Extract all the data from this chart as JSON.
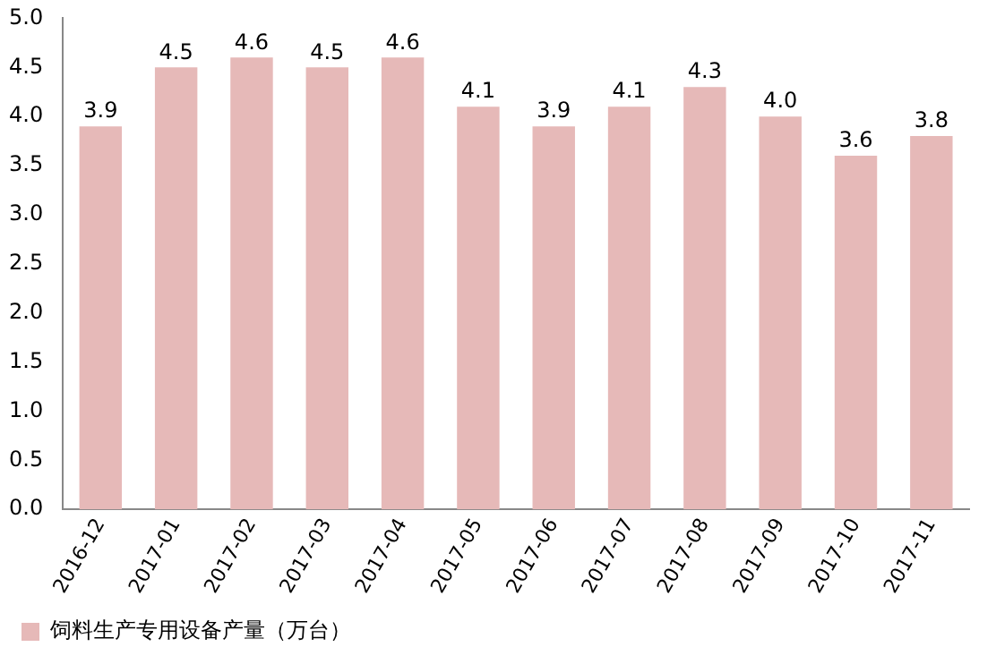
{
  "chart_data": {
    "type": "bar",
    "categories": [
      "2016-12",
      "2017-01",
      "2017-02",
      "2017-03",
      "2017-04",
      "2017-05",
      "2017-06",
      "2017-07",
      "2017-08",
      "2017-09",
      "2017-10",
      "2017-11"
    ],
    "series": [
      {
        "name": "饲料生产专用设备产量（万台）",
        "color": "#e6b9b8",
        "values": [
          3.9,
          4.5,
          4.6,
          4.5,
          4.6,
          4.1,
          3.9,
          4.1,
          4.3,
          4.0,
          3.6,
          3.8
        ],
        "value_labels": [
          "3.9",
          "4.5",
          "4.6",
          "4.5",
          "4.6",
          "4.1",
          "3.9",
          "4.1",
          "4.3",
          "4.0",
          "3.6",
          "3.8"
        ]
      }
    ],
    "ylim": [
      0,
      5
    ],
    "yticks": [
      {
        "value": 0,
        "label": "0.0"
      },
      {
        "value": 0.5,
        "label": "0.5"
      },
      {
        "value": 1,
        "label": "1.0"
      },
      {
        "value": 1.5,
        "label": "1.5"
      },
      {
        "value": 2,
        "label": "2.0"
      },
      {
        "value": 2.5,
        "label": "2.5"
      },
      {
        "value": 3,
        "label": "3.0"
      },
      {
        "value": 3.5,
        "label": "3.5"
      },
      {
        "value": 4,
        "label": "4.0"
      },
      {
        "value": 4.5,
        "label": "4.5"
      },
      {
        "value": 5,
        "label": "5.0"
      }
    ],
    "grid": false,
    "legend": "bottom left"
  }
}
